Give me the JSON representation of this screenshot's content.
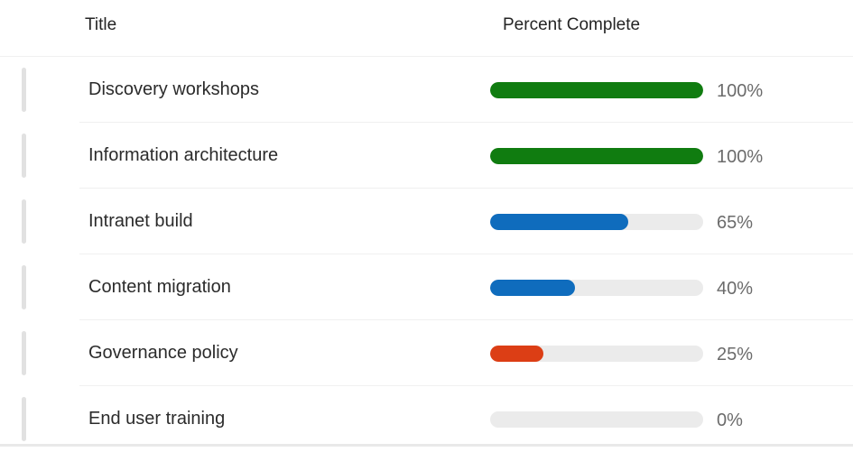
{
  "header": {
    "title_col": "Title",
    "percent_col": "Percent Complete"
  },
  "colors": {
    "complete": "#107c10",
    "in_progress": "#0f6cbd",
    "behind": "#dc3e15",
    "track": "#ebebeb"
  },
  "rows": [
    {
      "title": "Discovery workshops",
      "percent": 100,
      "percent_label": "100%",
      "status": "complete"
    },
    {
      "title": "Information architecture",
      "percent": 100,
      "percent_label": "100%",
      "status": "complete"
    },
    {
      "title": "Intranet build",
      "percent": 65,
      "percent_label": "65%",
      "status": "in_progress"
    },
    {
      "title": "Content migration",
      "percent": 40,
      "percent_label": "40%",
      "status": "in_progress"
    },
    {
      "title": "Governance policy",
      "percent": 25,
      "percent_label": "25%",
      "status": "behind"
    },
    {
      "title": "End user training",
      "percent": 0,
      "percent_label": "0%",
      "status": "in_progress"
    }
  ]
}
